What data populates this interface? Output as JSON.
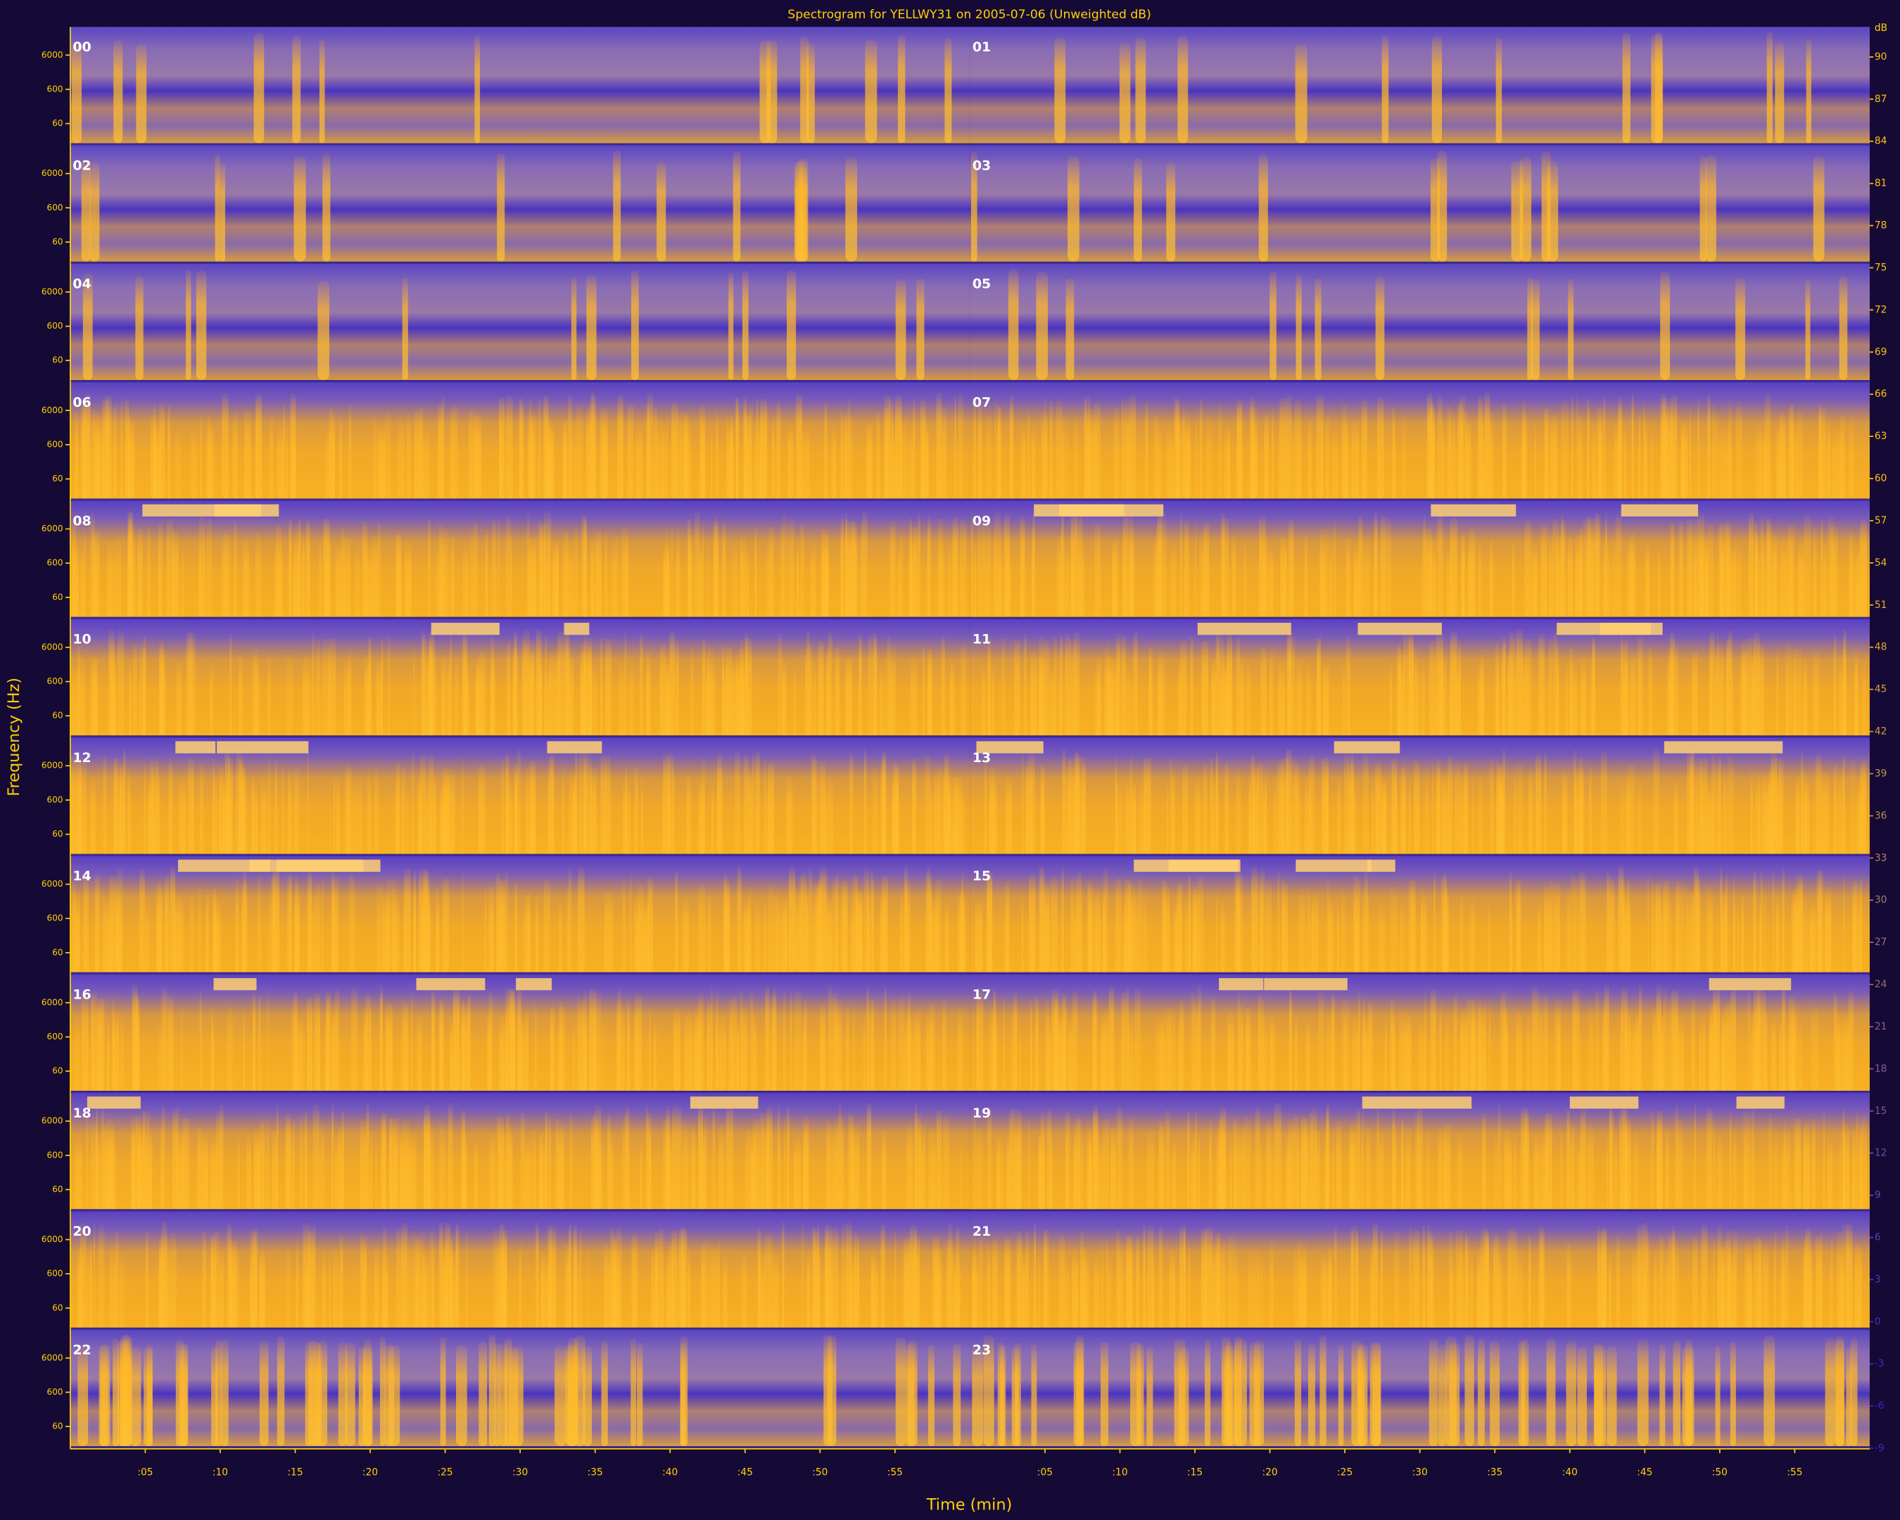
{
  "chart_data": {
    "type": "spectrogram",
    "title": "Spectrogram for YELLWY31 on 2005-07-06 (Unweighted dB)",
    "xlabel": "Time (min)",
    "ylabel": "Frequency (Hz)",
    "hours": [
      "00",
      "01",
      "02",
      "03",
      "04",
      "05",
      "06",
      "07",
      "08",
      "09",
      "10",
      "11",
      "12",
      "13",
      "14",
      "15",
      "16",
      "17",
      "18",
      "19",
      "20",
      "21",
      "22",
      "23"
    ],
    "xlim": [
      0,
      60
    ],
    "xticks": [
      {
        "value": 5,
        "label": ":05"
      },
      {
        "value": 10,
        "label": ":10"
      },
      {
        "value": 15,
        "label": ":15"
      },
      {
        "value": 20,
        "label": ":20"
      },
      {
        "value": 25,
        "label": ":25"
      },
      {
        "value": 30,
        "label": ":30"
      },
      {
        "value": 35,
        "label": ":35"
      },
      {
        "value": 40,
        "label": ":40"
      },
      {
        "value": 45,
        "label": ":45"
      },
      {
        "value": 50,
        "label": ":50"
      },
      {
        "value": 55,
        "label": ":55"
      }
    ],
    "ylim": [
      16,
      40000
    ],
    "yticks": [
      60,
      600,
      6000
    ],
    "log_y": true,
    "colorbar": {
      "label": "dB",
      "lim": [
        -9,
        93
      ],
      "ticks": [
        90,
        87,
        84,
        81,
        78,
        75,
        72,
        69,
        66,
        63,
        60,
        57,
        54,
        51,
        48,
        45,
        42,
        39,
        36,
        33,
        30,
        27,
        24,
        21,
        18,
        15,
        12,
        9,
        6,
        3,
        0,
        -3,
        -6,
        -9
      ],
      "colors": [
        "#3a22d8",
        "#ffc010"
      ]
    }
  }
}
